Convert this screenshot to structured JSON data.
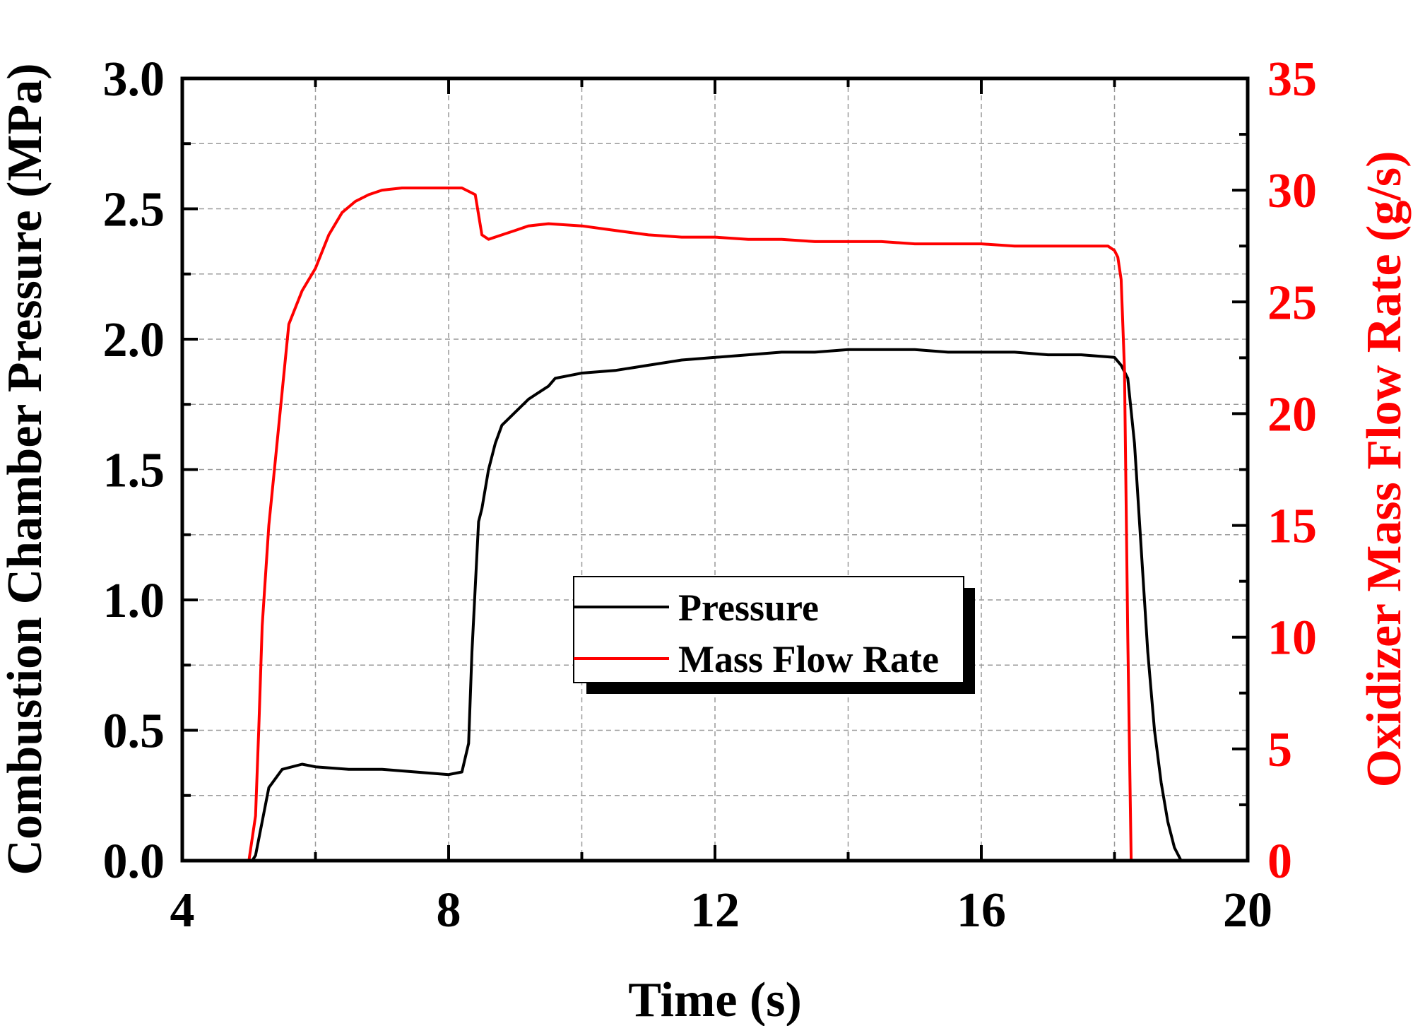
{
  "chart_data": {
    "type": "line",
    "xlabel": "Time (s)",
    "ylabel_left": "Combustion Chamber Pressure (MPa)",
    "ylabel_right": "Oxidizer Mass Flow Rate (g/s)",
    "xlim": [
      4,
      20
    ],
    "ylim_left": [
      0,
      3.0
    ],
    "ylim_right": [
      0,
      35
    ],
    "x_ticks": [
      "4",
      "8",
      "12",
      "16",
      "20"
    ],
    "y_left_ticks": [
      "0.0",
      "0.5",
      "1.0",
      "1.5",
      "2.0",
      "2.5",
      "3.0"
    ],
    "y_right_ticks": [
      "0",
      "5",
      "10",
      "15",
      "20",
      "25",
      "30",
      "35"
    ],
    "grid": true,
    "colors": {
      "pressure": "#000000",
      "flow": "#ff0000",
      "right_axis": "#ff0000"
    },
    "legend": {
      "placement": "center",
      "entries": [
        "Pressure",
        "Mass Flow Rate"
      ]
    },
    "series": [
      {
        "name": "Pressure",
        "axis": "left",
        "x": [
          4.0,
          5.05,
          5.1,
          5.2,
          5.3,
          5.5,
          5.8,
          6.0,
          6.5,
          7.0,
          7.5,
          8.0,
          8.2,
          8.3,
          8.35,
          8.45,
          8.5,
          8.6,
          8.7,
          8.8,
          9.0,
          9.2,
          9.5,
          9.6,
          9.8,
          10.0,
          10.5,
          11.0,
          11.5,
          12.0,
          12.5,
          13.0,
          13.5,
          14.0,
          14.5,
          15.0,
          15.5,
          16.0,
          16.5,
          17.0,
          17.5,
          18.0,
          18.1,
          18.2,
          18.3,
          18.4,
          18.5,
          18.6,
          18.7,
          18.8,
          18.9,
          19.0,
          19.5,
          20.0
        ],
        "y": [
          0.0,
          0.0,
          0.02,
          0.15,
          0.28,
          0.35,
          0.37,
          0.36,
          0.35,
          0.35,
          0.34,
          0.33,
          0.34,
          0.45,
          0.8,
          1.3,
          1.35,
          1.5,
          1.6,
          1.67,
          1.72,
          1.77,
          1.82,
          1.85,
          1.86,
          1.87,
          1.88,
          1.9,
          1.92,
          1.93,
          1.94,
          1.95,
          1.95,
          1.96,
          1.96,
          1.96,
          1.95,
          1.95,
          1.95,
          1.94,
          1.94,
          1.93,
          1.9,
          1.85,
          1.6,
          1.2,
          0.8,
          0.5,
          0.3,
          0.15,
          0.05,
          0.0,
          0.0,
          0.0
        ]
      },
      {
        "name": "Mass Flow Rate",
        "axis": "right",
        "x": [
          4.0,
          5.0,
          5.1,
          5.15,
          5.2,
          5.3,
          5.4,
          5.5,
          5.6,
          5.8,
          6.0,
          6.2,
          6.4,
          6.6,
          6.8,
          7.0,
          7.3,
          7.6,
          8.0,
          8.2,
          8.4,
          8.5,
          8.6,
          8.8,
          9.0,
          9.2,
          9.5,
          10.0,
          10.5,
          11.0,
          11.5,
          12.0,
          12.5,
          13.0,
          13.5,
          14.0,
          14.5,
          15.0,
          15.5,
          16.0,
          16.5,
          17.0,
          17.5,
          17.9,
          18.0,
          18.05,
          18.1,
          18.15,
          18.2,
          18.25,
          20.0
        ],
        "y": [
          0.0,
          0.0,
          2.0,
          6.0,
          10.5,
          15.0,
          18.0,
          21.0,
          24.0,
          25.5,
          26.5,
          28.0,
          29.0,
          29.5,
          29.8,
          30.0,
          30.1,
          30.1,
          30.1,
          30.1,
          29.8,
          28.0,
          27.8,
          28.0,
          28.2,
          28.4,
          28.5,
          28.4,
          28.2,
          28.0,
          27.9,
          27.9,
          27.8,
          27.8,
          27.7,
          27.7,
          27.7,
          27.6,
          27.6,
          27.6,
          27.5,
          27.5,
          27.5,
          27.5,
          27.3,
          27.0,
          26.0,
          22.0,
          10.0,
          0.0,
          0.0
        ]
      }
    ]
  }
}
